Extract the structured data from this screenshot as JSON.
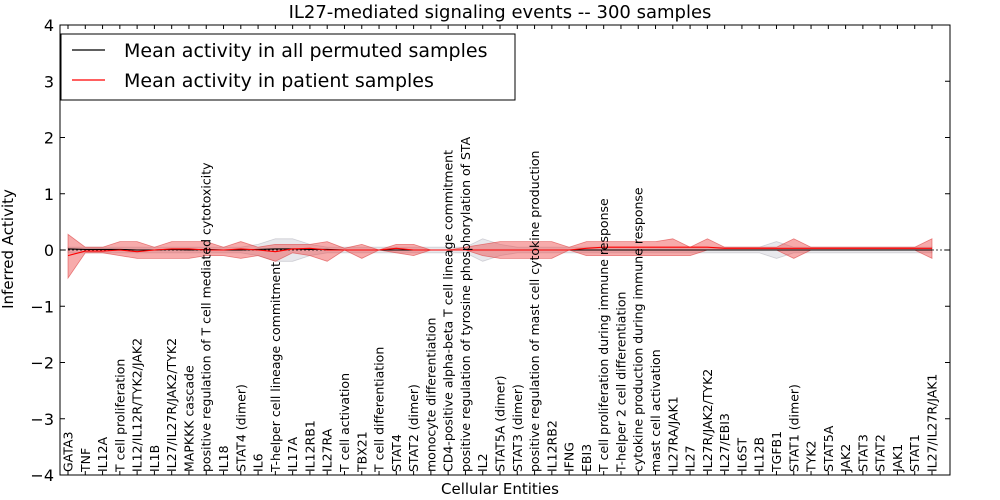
{
  "chart_data": {
    "type": "line",
    "title": "IL27-mediated signaling events -- 300 samples",
    "xlabel": "Cellular Entities",
    "ylabel": "Inferred Activity",
    "ylim": [
      -4,
      4
    ],
    "yticks": [
      "−4",
      "−3",
      "−2",
      "−1",
      "0",
      "1",
      "2",
      "3",
      "4"
    ],
    "legend": {
      "location": "top-left",
      "entries": [
        {
          "label": "Mean activity in all permuted samples",
          "color": "#000000"
        },
        {
          "label": "Mean activity in patient samples",
          "color": "#ff0000"
        }
      ]
    },
    "categories": [
      "GATA3",
      "TNF",
      "IL12A",
      "T cell proliferation",
      "IL12/IL12R/TYK2/JAK2",
      "IL1B",
      "IL27/IL27R/JAK2/TYK2",
      "MAPKKK cascade",
      "positive regulation of T cell mediated cytotoxicity",
      "IL18",
      "STAT4 (dimer)",
      "IL6",
      "T-helper cell lineage commitment",
      "IL17A",
      "IL12RB1",
      "IL27RA",
      "T cell activation",
      "TBX21",
      "T cell differentiation",
      "STAT4",
      "STAT2 (dimer)",
      "monocyte differentiation",
      "CD4-positive alpha-beta T cell lineage commitment",
      "positive regulation of tyrosine phosphorylation of STA",
      "IL2",
      "STAT5A (dimer)",
      "STAT3 (dimer)",
      "positive regulation of mast cell cytokine production",
      "IL12RB2",
      "IFNG",
      "EBI3",
      "T cell proliferation during immune response",
      "T-helper 2 cell differentiation",
      "cytokine production during immune response",
      "mast cell activation",
      "IL27RA/JAK1",
      "IL27",
      "IL27R/JAK2/TYK2",
      "IL27/EBI3",
      "IL6ST",
      "IL12B",
      "TGFB1",
      "STAT1 (dimer)",
      "TYK2",
      "STAT5A",
      "JAK2",
      "STAT3",
      "STAT2",
      "JAK1",
      "STAT1",
      "IL27/IL27R/JAK1"
    ],
    "series": [
      {
        "name": "Mean activity in all permuted samples",
        "color": "#000000",
        "values": [
          0.02,
          0.01,
          0.01,
          0.01,
          0.0,
          0.0,
          0.01,
          0.0,
          0.01,
          0.0,
          0.0,
          0.01,
          0.02,
          0.02,
          0.01,
          0.01,
          0.0,
          0.0,
          0.0,
          0.0,
          0.0,
          0.0,
          0.0,
          0.0,
          0.0,
          0.0,
          0.0,
          0.0,
          0.0,
          0.0,
          0.0,
          0.0,
          0.0,
          0.0,
          0.0,
          0.0,
          0.0,
          0.0,
          0.0,
          0.0,
          0.0,
          0.0,
          0.0,
          0.0,
          0.0,
          0.0,
          0.0,
          0.0,
          0.0,
          0.0,
          0.0
        ],
        "lower": [
          -0.05,
          -0.05,
          -0.05,
          -0.05,
          -0.05,
          -0.05,
          -0.05,
          -0.05,
          -0.05,
          -0.05,
          -0.05,
          -0.1,
          -0.2,
          -0.2,
          -0.1,
          -0.05,
          -0.05,
          -0.05,
          -0.05,
          -0.05,
          -0.05,
          -0.05,
          -0.05,
          -0.05,
          -0.2,
          -0.1,
          -0.05,
          -0.05,
          -0.05,
          -0.05,
          -0.05,
          -0.05,
          -0.05,
          -0.05,
          -0.05,
          -0.05,
          -0.05,
          -0.05,
          -0.05,
          -0.05,
          -0.05,
          -0.15,
          -0.05,
          -0.05,
          -0.05,
          -0.05,
          -0.05,
          -0.05,
          -0.05,
          -0.05,
          -0.05
        ],
        "upper": [
          0.05,
          0.05,
          0.05,
          0.05,
          0.05,
          0.05,
          0.05,
          0.05,
          0.05,
          0.05,
          0.05,
          0.1,
          0.2,
          0.2,
          0.1,
          0.05,
          0.05,
          0.05,
          0.05,
          0.05,
          0.05,
          0.05,
          0.05,
          0.05,
          0.2,
          0.1,
          0.05,
          0.05,
          0.05,
          0.05,
          0.05,
          0.05,
          0.05,
          0.05,
          0.05,
          0.05,
          0.05,
          0.05,
          0.05,
          0.05,
          0.05,
          0.15,
          0.05,
          0.05,
          0.05,
          0.05,
          0.05,
          0.05,
          0.05,
          0.05,
          0.05
        ]
      },
      {
        "name": "Mean activity in patient samples",
        "color": "#ff0000",
        "values": [
          -0.1,
          -0.02,
          -0.02,
          0.0,
          -0.03,
          0.0,
          0.02,
          0.02,
          0.0,
          0.0,
          0.02,
          0.0,
          -0.03,
          0.02,
          0.03,
          0.0,
          0.0,
          0.0,
          0.0,
          0.03,
          0.0,
          0.0,
          0.0,
          0.0,
          0.0,
          0.0,
          0.0,
          0.0,
          0.0,
          0.0,
          0.03,
          0.05,
          0.05,
          0.05,
          0.05,
          0.05,
          0.05,
          0.05,
          0.03,
          0.03,
          0.03,
          0.03,
          0.03,
          0.03,
          0.03,
          0.03,
          0.03,
          0.03,
          0.03,
          0.03,
          0.03
        ],
        "lower": [
          -0.5,
          -0.05,
          -0.05,
          -0.1,
          -0.15,
          -0.15,
          -0.15,
          -0.15,
          -0.1,
          -0.1,
          -0.15,
          -0.1,
          -0.2,
          -0.05,
          -0.1,
          -0.2,
          0.0,
          -0.15,
          0.0,
          -0.05,
          -0.1,
          0.0,
          0.0,
          0.0,
          -0.1,
          -0.15,
          -0.15,
          -0.15,
          -0.15,
          0.0,
          -0.1,
          -0.1,
          -0.1,
          -0.1,
          -0.1,
          -0.1,
          -0.1,
          0.0,
          0.0,
          0.0,
          0.0,
          0.0,
          -0.15,
          0.0,
          0.0,
          0.0,
          0.0,
          0.0,
          0.0,
          0.0,
          -0.15
        ],
        "upper": [
          0.28,
          0.05,
          0.05,
          0.15,
          0.15,
          0.05,
          0.15,
          0.15,
          0.15,
          0.05,
          0.15,
          0.05,
          0.1,
          0.1,
          0.1,
          0.15,
          0.03,
          0.1,
          0.0,
          0.1,
          0.1,
          0.0,
          0.0,
          0.05,
          0.1,
          0.15,
          0.15,
          0.15,
          0.15,
          0.05,
          0.15,
          0.15,
          0.15,
          0.15,
          0.15,
          0.2,
          0.05,
          0.2,
          0.05,
          0.05,
          0.05,
          0.05,
          0.2,
          0.05,
          0.05,
          0.05,
          0.05,
          0.05,
          0.05,
          0.05,
          0.2
        ]
      }
    ]
  }
}
